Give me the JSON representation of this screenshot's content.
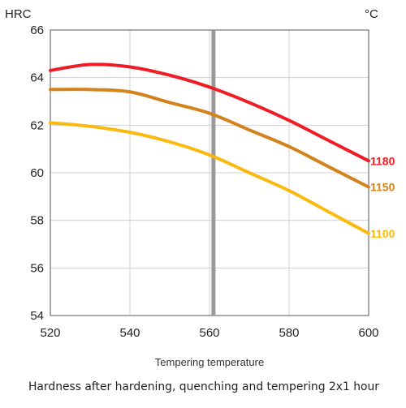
{
  "chart_data": {
    "type": "line",
    "ylabel": "HRC",
    "series_unit": "°C",
    "xlabel": "Tempering temperature",
    "caption": "Hardness after hardening, quenching and tempering  2x1 hour",
    "xlim": [
      520,
      600
    ],
    "ylim": [
      54,
      66
    ],
    "x_ticks": [
      "520",
      "540",
      "560",
      "580",
      "600"
    ],
    "y_ticks": [
      "54",
      "56",
      "58",
      "60",
      "62",
      "64",
      "66"
    ],
    "grid": true,
    "reference_line_x": 561,
    "x": [
      520,
      530,
      540,
      550,
      560,
      570,
      580,
      590,
      600
    ],
    "series": [
      {
        "name": "1180",
        "color": "#ee1c25",
        "values": [
          64.3,
          64.55,
          64.45,
          64.1,
          63.6,
          62.95,
          62.2,
          61.35,
          60.5
        ]
      },
      {
        "name": "1150",
        "color": "#d4821c",
        "values": [
          63.5,
          63.5,
          63.4,
          62.95,
          62.5,
          61.8,
          61.1,
          60.25,
          59.4
        ]
      },
      {
        "name": "1100",
        "color": "#f9b90f",
        "values": [
          62.1,
          61.95,
          61.7,
          61.3,
          60.75,
          60.0,
          59.25,
          58.35,
          57.45
        ]
      }
    ]
  }
}
